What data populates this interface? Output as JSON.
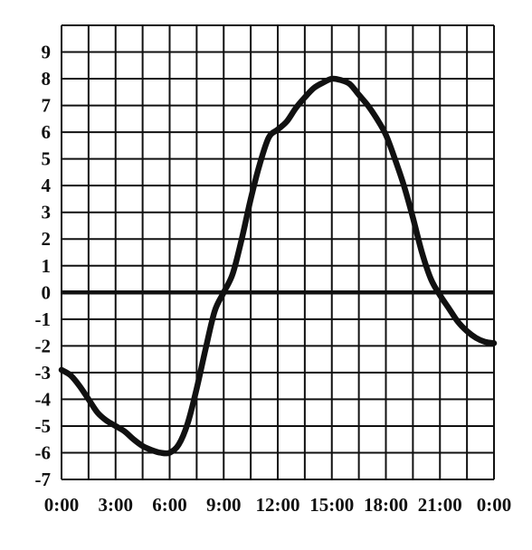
{
  "chart_data": {
    "type": "line",
    "title": "",
    "xlabel": "",
    "ylabel": "",
    "xlim": [
      0,
      24
    ],
    "ylim": [
      -7,
      10
    ],
    "grid": true,
    "x_tick_labels": [
      "0:00",
      "3:00",
      "6:00",
      "9:00",
      "12:00",
      "15:00",
      "18:00",
      "21:00",
      "0:00"
    ],
    "y_tick_labels": [
      "9",
      "8",
      "7",
      "6",
      "5",
      "4",
      "3",
      "2",
      "1",
      "0",
      "-1",
      "-2",
      "-3",
      "-4",
      "-5",
      "-6",
      "-7"
    ],
    "series": [
      {
        "x": [
          0,
          0.5,
          1,
          1.5,
          2,
          2.5,
          3,
          3.5,
          4,
          4.5,
          5,
          5.5,
          6,
          6.5,
          7,
          7.5,
          8,
          8.5,
          9,
          9.5,
          10,
          10.5,
          11,
          11.5,
          12,
          12.5,
          13,
          13.5,
          14,
          14.5,
          15,
          15.5,
          16,
          16.5,
          17,
          17.5,
          18,
          18.5,
          19,
          19.5,
          20,
          20.5,
          21,
          21.5,
          22,
          22.5,
          23,
          23.5,
          24
        ],
        "values": [
          -2.9,
          -3.1,
          -3.5,
          -4.0,
          -4.5,
          -4.8,
          -5.0,
          -5.2,
          -5.5,
          -5.75,
          -5.9,
          -6.0,
          -6.0,
          -5.7,
          -4.9,
          -3.6,
          -2.1,
          -0.7,
          0.0,
          0.7,
          2.0,
          3.5,
          4.8,
          5.8,
          6.1,
          6.4,
          6.9,
          7.3,
          7.65,
          7.85,
          8.0,
          7.95,
          7.8,
          7.4,
          7.0,
          6.5,
          5.9,
          5.0,
          4.0,
          2.8,
          1.5,
          0.5,
          -0.1,
          -0.6,
          -1.1,
          -1.45,
          -1.7,
          -1.85,
          -1.9
        ]
      }
    ],
    "colors": {
      "line": "#111111",
      "grid": "#111111",
      "background": "#ffffff"
    }
  }
}
